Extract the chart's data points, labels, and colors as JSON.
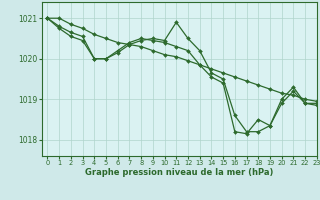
{
  "title": "Graphe pression niveau de la mer (hPa)",
  "background_color": "#cfe9e9",
  "plot_bg_color": "#daf2f2",
  "line_color": "#2d6a2d",
  "grid_color": "#b0d4cc",
  "xlim": [
    -0.5,
    23
  ],
  "ylim": [
    1017.6,
    1021.4
  ],
  "yticks": [
    1018,
    1019,
    1020,
    1021
  ],
  "xticks": [
    0,
    1,
    2,
    3,
    4,
    5,
    6,
    7,
    8,
    9,
    10,
    11,
    12,
    13,
    14,
    15,
    16,
    17,
    18,
    19,
    20,
    21,
    22,
    23
  ],
  "series": [
    {
      "x": [
        0,
        1,
        2,
        3,
        4,
        5,
        6,
        7,
        8,
        9,
        10,
        11,
        12,
        13,
        14,
        15,
        16,
        17,
        18,
        19,
        20,
        21,
        22,
        23
      ],
      "y": [
        1021.0,
        1021.0,
        1020.85,
        1020.75,
        1020.6,
        1020.5,
        1020.4,
        1020.35,
        1020.3,
        1020.2,
        1020.1,
        1020.05,
        1019.95,
        1019.85,
        1019.75,
        1019.65,
        1019.55,
        1019.45,
        1019.35,
        1019.25,
        1019.15,
        1019.1,
        1019.0,
        1018.95
      ]
    },
    {
      "x": [
        0,
        1,
        2,
        3,
        4,
        5,
        6,
        7,
        8,
        9,
        10,
        11,
        12,
        13,
        14,
        15,
        16,
        17,
        18,
        19,
        20,
        21,
        22,
        23
      ],
      "y": [
        1021.0,
        1020.8,
        1020.65,
        1020.55,
        1020.0,
        1020.0,
        1020.15,
        1020.35,
        1020.45,
        1020.5,
        1020.45,
        1020.9,
        1020.5,
        1020.2,
        1019.65,
        1019.5,
        1018.6,
        1018.2,
        1018.2,
        1018.35,
        1019.0,
        1019.3,
        1018.9,
        1018.9
      ]
    },
    {
      "x": [
        0,
        1,
        2,
        3,
        4,
        5,
        6,
        7,
        8,
        9,
        10,
        11,
        12,
        13,
        14,
        15,
        16,
        17,
        18,
        19,
        20,
        21,
        22,
        23
      ],
      "y": [
        1021.0,
        1020.75,
        1020.55,
        1020.45,
        1020.0,
        1020.0,
        1020.2,
        1020.4,
        1020.5,
        1020.45,
        1020.4,
        1020.3,
        1020.2,
        1019.85,
        1019.55,
        1019.4,
        1018.2,
        1018.15,
        1018.5,
        1018.35,
        1018.9,
        1019.2,
        1018.9,
        1018.85
      ]
    }
  ]
}
